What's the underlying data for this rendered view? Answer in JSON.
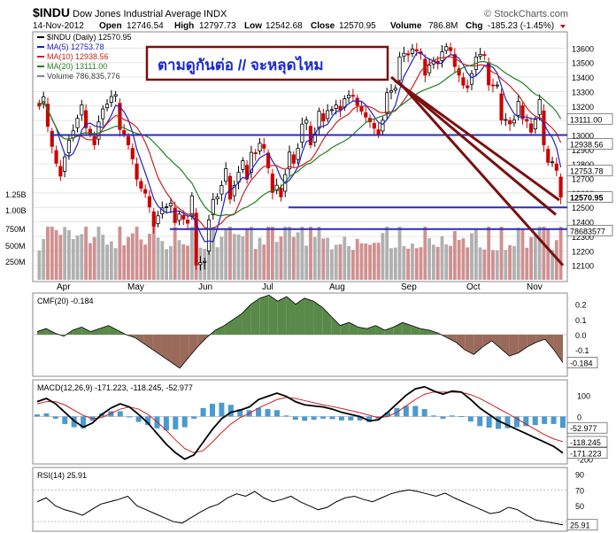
{
  "header": {
    "symbol": "$INDU",
    "name": "Dow Jones Industrial Average",
    "exchange": "INDX",
    "copyright": "© StockCharts.com",
    "date": "14-Nov-2012",
    "open_label": "Open",
    "open": "12746.54",
    "high_label": "High",
    "high": "12797.73",
    "low_label": "Low",
    "low": "12542.68",
    "close_label": "Close",
    "close": "12570.95",
    "volume_label": "Volume",
    "volume": "786.8M",
    "chg_label": "Chg",
    "chg": "-185.23 (-1.45%)"
  },
  "annotation": {
    "text": "ตามดูกันต่อ   // จะหลุดไหม"
  },
  "colors": {
    "up_candle": "#000000",
    "down_candle": "#cc0000",
    "ma5": "#2020cc",
    "ma10": "#cc2020",
    "ma20": "#208020",
    "support_lines": "#2a2ab8",
    "trend_lines": "#7a1010",
    "cmf_positive": "#5a8a4a",
    "cmf_negative": "#9a6a5a",
    "macd_hist": "#4a9ad0",
    "volume_up": "#b0b0b0",
    "volume_down": "#d09090",
    "annotation_border": "#7a1010",
    "annotation_text": "#1a2ad0"
  },
  "chart_data": [
    {
      "type": "candlestick",
      "title": "$INDU (Daily) 12570.95",
      "x_labels": [
        "Apr",
        "May",
        "Jun",
        "Jul",
        "Aug",
        "Sep",
        "Oct",
        "Nov"
      ],
      "ylim": [
        12000,
        13700
      ],
      "y_ticks": [
        12100,
        12200,
        12300,
        12400,
        12500,
        12600,
        12700,
        12800,
        12900,
        13000,
        13100,
        13200,
        13300,
        13400,
        13500,
        13600
      ],
      "price_tags": [
        {
          "label": "13111.00",
          "value": 13111
        },
        {
          "label": "12938.56",
          "value": 12938.56
        },
        {
          "label": "12753.78",
          "value": 12753.78
        },
        {
          "label": "12570.95",
          "value": 12570.95
        },
        {
          "label": "78683577",
          "value": 12340
        }
      ],
      "legend": [
        {
          "name": "$INDU (Daily)",
          "value": "12570.95"
        },
        {
          "name": "MA(5)",
          "value": "12753.78"
        },
        {
          "name": "MA(10)",
          "value": "12938.56"
        },
        {
          "name": "MA(20)",
          "value": "13111.00"
        },
        {
          "name": "Volume",
          "value": "786,835,776"
        }
      ],
      "close_series": [
        13199,
        13264,
        13060,
        12921,
        12805,
        12716,
        12849,
        12964,
        13029,
        13115,
        13208,
        13050,
        13008,
        12932,
        13090,
        13180,
        13213,
        13265,
        13279,
        13038,
        13008,
        12932,
        12835,
        12695,
        12632,
        12598,
        12503,
        12369,
        12442,
        12496,
        12504,
        12529,
        12395,
        12454,
        12419,
        12391,
        12580,
        12101,
        12118,
        12127,
        12414,
        12554,
        12573,
        12651,
        12767,
        12557,
        12651,
        12742,
        12822,
        12696,
        12880,
        12871,
        12943,
        12909,
        12773,
        12604,
        12653,
        12573,
        12727,
        12882,
        12805,
        12908,
        13075,
        13103,
        12932,
        13008,
        13164,
        13096,
        13168,
        13175,
        13207,
        13172,
        13250,
        13275,
        13271,
        13205,
        13164,
        13124,
        13091,
        13047,
        13003,
        13102,
        13292,
        13306,
        13323,
        13539,
        13564,
        13553,
        13593,
        13579,
        13560,
        13413,
        13482,
        13515,
        13494,
        13575,
        13610,
        13583,
        13473,
        13413,
        13344,
        13326,
        13424,
        13539,
        13557,
        13551,
        13346,
        13343,
        13345,
        13103,
        13107,
        13077,
        13103,
        13232,
        13112,
        13096,
        13020,
        13107,
        13245,
        12932,
        12811,
        12815,
        12756,
        12571
      ],
      "horizontal_levels": [
        13000,
        12500,
        12350
      ],
      "trend_lines": "three downward lines from early-September high"
    },
    {
      "type": "line",
      "title": "CMF(20) -0.184",
      "ylim": [
        -0.25,
        0.25
      ],
      "y_ticks": [
        "0.2",
        "0.1",
        "0.0",
        "-0.1"
      ],
      "last_value_tag": "-0.184",
      "values": [
        0.02,
        0.04,
        0.01,
        -0.01,
        0.03,
        0.05,
        0.02,
        0.04,
        0.06,
        0.03,
        0.0,
        -0.02,
        -0.06,
        -0.1,
        -0.14,
        -0.18,
        -0.22,
        -0.15,
        -0.08,
        -0.02,
        0.03,
        0.06,
        0.1,
        0.14,
        0.2,
        0.24,
        0.26,
        0.22,
        0.25,
        0.2,
        0.24,
        0.22,
        0.18,
        0.12,
        0.06,
        0.08,
        0.05,
        0.04,
        0.06,
        0.03,
        0.05,
        0.08,
        0.06,
        0.04,
        0.03,
        0.01,
        -0.02,
        -0.05,
        -0.1,
        -0.13,
        -0.08,
        -0.04,
        -0.09,
        -0.14,
        -0.12,
        -0.08,
        -0.05,
        -0.03,
        -0.1,
        -0.184
      ]
    },
    {
      "type": "line",
      "title": "MACD(12,26,9) -171.223, -118.245, -52.977",
      "ylim": [
        -210,
        160
      ],
      "y_ticks": [
        "100",
        "0",
        "-200"
      ],
      "value_tags": [
        "-52.977",
        "-118.245",
        "-171.223"
      ],
      "macd": [
        70,
        85,
        60,
        20,
        -20,
        -50,
        -30,
        10,
        40,
        60,
        45,
        10,
        -30,
        -80,
        -130,
        -170,
        -200,
        -180,
        -120,
        -60,
        -10,
        20,
        30,
        45,
        80,
        95,
        110,
        95,
        70,
        55,
        50,
        45,
        35,
        20,
        10,
        0,
        -20,
        -15,
        20,
        60,
        100,
        130,
        140,
        120,
        105,
        120,
        115,
        80,
        40,
        10,
        -20,
        -40,
        -60,
        -80,
        -100,
        -120,
        -140,
        -171
      ],
      "signal": [
        60,
        70,
        70,
        55,
        30,
        5,
        -10,
        -5,
        15,
        35,
        45,
        35,
        10,
        -25,
        -65,
        -110,
        -150,
        -170,
        -160,
        -120,
        -75,
        -35,
        -5,
        15,
        40,
        60,
        80,
        90,
        85,
        75,
        65,
        55,
        47,
        38,
        28,
        18,
        6,
        -5,
        0,
        20,
        50,
        80,
        105,
        115,
        115,
        115,
        113,
        103,
        85,
        62,
        38,
        15,
        -10,
        -35,
        -60,
        -85,
        -105,
        -118
      ],
      "histogram": [
        10,
        15,
        -10,
        -35,
        -50,
        -55,
        -20,
        15,
        25,
        25,
        0,
        -25,
        -40,
        -55,
        -65,
        -60,
        -50,
        -10,
        40,
        60,
        65,
        55,
        35,
        30,
        40,
        35,
        30,
        5,
        -15,
        -20,
        -15,
        -10,
        -12,
        -18,
        -18,
        -18,
        -26,
        -10,
        20,
        40,
        50,
        50,
        35,
        5,
        -10,
        5,
        2,
        -23,
        -45,
        -52,
        -58,
        -55,
        -50,
        -45,
        -40,
        -35,
        -35,
        -53
      ]
    },
    {
      "type": "line",
      "title": "RSI(14) 25.91",
      "ylim": [
        20,
        95
      ],
      "y_ticks": [
        "90",
        "70",
        "50",
        "30"
      ],
      "last_value_tag": "25.91",
      "values": [
        55,
        60,
        50,
        45,
        42,
        38,
        45,
        52,
        55,
        58,
        62,
        50,
        45,
        40,
        35,
        30,
        28,
        35,
        42,
        48,
        52,
        60,
        65,
        62,
        68,
        60,
        55,
        58,
        62,
        55,
        50,
        45,
        48,
        55,
        60,
        62,
        58,
        55,
        60,
        65,
        68,
        70,
        68,
        65,
        62,
        66,
        60,
        55,
        50,
        45,
        40,
        42,
        48,
        45,
        38,
        32,
        30,
        28,
        25.91
      ]
    }
  ]
}
